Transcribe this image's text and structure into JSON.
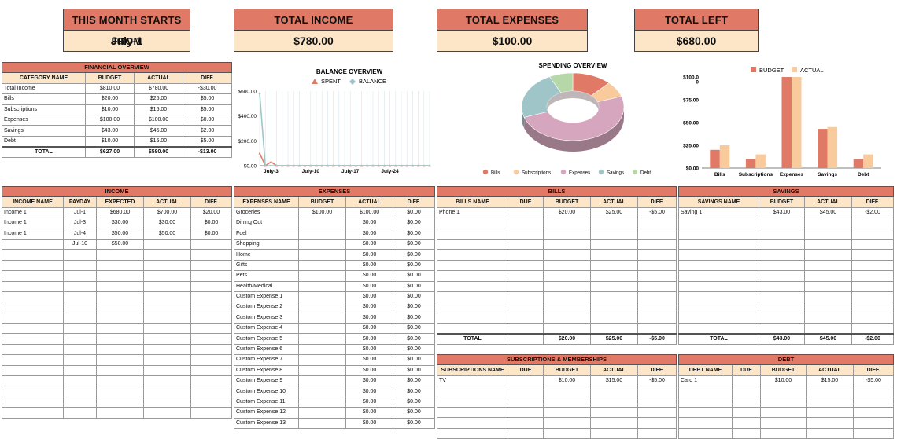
{
  "kpis": [
    {
      "label": "THIS MONTH STARTS FROM",
      "value": "July-1"
    },
    {
      "label": "TOTAL INCOME",
      "value": "$780.00"
    },
    {
      "label": "TOTAL EXPENSES",
      "value": "$100.00"
    },
    {
      "label": "TOTAL LEFT",
      "value": "$680.00"
    }
  ],
  "financial_overview": {
    "title": "FINANCIAL OVERVIEW",
    "headers": [
      "CATEGORY NAME",
      "BUDGET",
      "ACTUAL",
      "DIFF."
    ],
    "rows": [
      [
        "Total Income",
        "$810.00",
        "$780.00",
        "-$30.00"
      ],
      [
        "Bills",
        "$20.00",
        "$25.00",
        "$5.00"
      ],
      [
        "Subscriptions",
        "$10.00",
        "$15.00",
        "$5.00"
      ],
      [
        "Expenses",
        "$100.00",
        "$100.00",
        "$0.00"
      ],
      [
        "Savings",
        "$43.00",
        "$45.00",
        "$2.00"
      ],
      [
        "Debt",
        "$10.00",
        "$15.00",
        "$5.00"
      ]
    ],
    "total": [
      "TOTAL",
      "$627.00",
      "$580.00",
      "-$13.00"
    ]
  },
  "income": {
    "title": "INCOME",
    "headers": [
      "INCOME NAME",
      "PAYDAY",
      "EXPECTED",
      "ACTUAL",
      "DIFF."
    ],
    "rows": [
      [
        "Income 1",
        "Jul-1",
        "$680.00",
        "$700.00",
        "$20.00"
      ],
      [
        "Income 1",
        "Jul-3",
        "$30.00",
        "$30.00",
        "$0.00"
      ],
      [
        "Income 1",
        "Jul-4",
        "$50.00",
        "$50.00",
        "$0.00"
      ],
      [
        "",
        "Jul-10",
        "$50.00",
        "",
        ""
      ]
    ],
    "blank_rows": 16
  },
  "expenses": {
    "title": "EXPENSES",
    "headers": [
      "EXPENSES NAME",
      "BUDGET",
      "ACTUAL",
      "DIFF."
    ],
    "rows": [
      [
        "Groceries",
        "$100.00",
        "$100.00",
        "$0.00"
      ],
      [
        "Dining Out",
        "",
        "$0.00",
        "$0.00"
      ],
      [
        "Fuel",
        "",
        "$0.00",
        "$0.00"
      ],
      [
        "Shopping",
        "",
        "$0.00",
        "$0.00"
      ],
      [
        "Home",
        "",
        "$0.00",
        "$0.00"
      ],
      [
        "Gifts",
        "",
        "$0.00",
        "$0.00"
      ],
      [
        "Pets",
        "",
        "$0.00",
        "$0.00"
      ],
      [
        "Health/Medical",
        "",
        "$0.00",
        "$0.00"
      ],
      [
        "Custom Expense 1",
        "",
        "$0.00",
        "$0.00"
      ],
      [
        "Custom Expense 2",
        "",
        "$0.00",
        "$0.00"
      ],
      [
        "Custom Expense 3",
        "",
        "$0.00",
        "$0.00"
      ],
      [
        "Custom Expense 4",
        "",
        "$0.00",
        "$0.00"
      ],
      [
        "Custom Expense 5",
        "",
        "$0.00",
        "$0.00"
      ],
      [
        "Custom Expense 6",
        "",
        "$0.00",
        "$0.00"
      ],
      [
        "Custom Expense 7",
        "",
        "$0.00",
        "$0.00"
      ],
      [
        "Custom Expense 8",
        "",
        "$0.00",
        "$0.00"
      ],
      [
        "Custom Expense 9",
        "",
        "$0.00",
        "$0.00"
      ],
      [
        "Custom Expense 10",
        "",
        "$0.00",
        "$0.00"
      ],
      [
        "Custom Expense 11",
        "",
        "$0.00",
        "$0.00"
      ],
      [
        "Custom Expense 12",
        "",
        "$0.00",
        "$0.00"
      ],
      [
        "Custom Expense 13",
        "",
        "$0.00",
        "$0.00"
      ]
    ]
  },
  "bills": {
    "title": "BILLS",
    "headers": [
      "BILLS NAME",
      "DUE",
      "BUDGET",
      "ACTUAL",
      "DIFF."
    ],
    "rows": [
      [
        "Phone 1",
        "",
        "$20.00",
        "$25.00",
        "-$5.00"
      ]
    ],
    "blank_rows": 11,
    "total": [
      "TOTAL",
      "",
      "$20.00",
      "$25.00",
      "-$5.00"
    ]
  },
  "savings": {
    "title": "SAVINGS",
    "headers": [
      "SAVINGS NAME",
      "BUDGET",
      "ACTUAL",
      "DIFF."
    ],
    "rows": [
      [
        "Saving 1",
        "$43.00",
        "$45.00",
        "-$2.00"
      ]
    ],
    "blank_rows": 11,
    "total": [
      "TOTAL",
      "$43.00",
      "$45.00",
      "-$2.00"
    ]
  },
  "subscriptions": {
    "title": "SUBSCRIPTIONS & MEMBERSHIPS",
    "headers": [
      "SUBSCRIPTIONS NAME",
      "DUE",
      "BUDGET",
      "ACTUAL",
      "DIFF."
    ],
    "rows": [
      [
        "TV",
        "",
        "$10.00",
        "$15.00",
        "-$5.00"
      ]
    ],
    "blank_rows": 5
  },
  "debt": {
    "title": "DEBT",
    "headers": [
      "DEBT NAME",
      "DUE",
      "BUDGET",
      "ACTUAL",
      "DIFF."
    ],
    "rows": [
      [
        "Card 1",
        "",
        "$10.00",
        "$15.00",
        "-$5.00"
      ]
    ],
    "blank_rows": 5
  },
  "colors": {
    "header_fill": "#e07a66",
    "subheader_fill": "#fde6c8",
    "spent": "#e07a66",
    "balance": "#9fc5c8",
    "budget": "#e07a66",
    "actual": "#f9cb9c"
  },
  "chart_data": [
    {
      "type": "line",
      "title": "BALANCE OVERVIEW",
      "legend": "top",
      "x_ticks": [
        "July-3",
        "July-10",
        "July-17",
        "July-24"
      ],
      "y_ticks": [
        "$600.00",
        "$400.00",
        "$200.00",
        "$0.00"
      ],
      "ylim": [
        0,
        600
      ],
      "x_days": [
        1,
        2,
        3,
        4,
        5,
        6,
        7,
        8,
        9,
        10,
        11,
        12,
        13,
        14,
        15,
        16,
        17,
        18,
        19,
        20,
        21,
        22,
        23,
        24,
        25,
        26,
        27,
        28,
        29,
        30,
        31
      ],
      "series": [
        {
          "name": "SPENT",
          "values": [
            100,
            0,
            30,
            0,
            0,
            0,
            0,
            0,
            0,
            0,
            0,
            0,
            0,
            0,
            0,
            0,
            0,
            0,
            0,
            0,
            0,
            0,
            0,
            0,
            0,
            0,
            0,
            0,
            0,
            0,
            0
          ]
        },
        {
          "name": "BALANCE",
          "values": [
            580,
            0,
            0,
            0,
            0,
            0,
            0,
            0,
            0,
            0,
            0,
            0,
            0,
            0,
            0,
            0,
            0,
            0,
            0,
            0,
            0,
            0,
            0,
            0,
            0,
            0,
            0,
            0,
            0,
            0,
            0
          ]
        }
      ]
    },
    {
      "type": "pie",
      "title": "SPENDING OVERVIEW",
      "legend": "bottom",
      "categories": [
        "Bills",
        "Subscriptions",
        "Expenses",
        "Savings",
        "Debt"
      ],
      "values": [
        25,
        15,
        100,
        45,
        15
      ],
      "colors": [
        "#e07a66",
        "#f9cb9c",
        "#d5a6bd",
        "#9fc5c8",
        "#b6d7a8"
      ]
    },
    {
      "type": "bar",
      "legend": "top",
      "categories": [
        "Bills",
        "Subscriptions",
        "Expenses",
        "Savings",
        "Debt"
      ],
      "y_ticks": [
        "$100.0\n0",
        "$75.00",
        "$50.00",
        "$25.00",
        "$0.00"
      ],
      "ylim": [
        0,
        100
      ],
      "series": [
        {
          "name": "BUDGET",
          "values": [
            20,
            10,
            100,
            43,
            10
          ]
        },
        {
          "name": "ACTUAL",
          "values": [
            25,
            15,
            100,
            45,
            15
          ]
        }
      ]
    }
  ]
}
